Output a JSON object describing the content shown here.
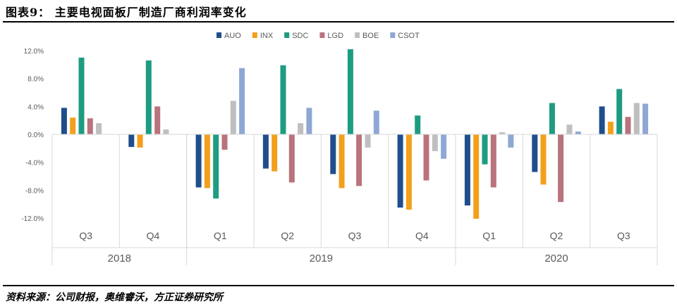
{
  "title": "图表9：  主要电视面板厂制造厂商利润率变化",
  "source": "资料来源：公司财报，奥维睿沃，方正证券研究所",
  "chart_data": {
    "type": "bar",
    "y_ticks": [
      "12.0%",
      "8.0%",
      "4.0%",
      "0.0%",
      "-4.0%",
      "-8.0%",
      "-12.0%"
    ],
    "ylim": [
      -12,
      12
    ],
    "legend_position": "top-center",
    "grid": false,
    "categories": [
      "Q3",
      "Q4",
      "Q1",
      "Q2",
      "Q3",
      "Q4",
      "Q1",
      "Q2",
      "Q3"
    ],
    "year_groups": [
      {
        "label": "2018",
        "span": 2
      },
      {
        "label": "2019",
        "span": 4
      },
      {
        "label": "2020",
        "span": 3
      }
    ],
    "series": [
      {
        "name": "AUO",
        "color": "#1F4E8C",
        "values": [
          3.8,
          -1.8,
          -7.6,
          -4.9,
          -5.7,
          -10.5,
          -10.2,
          -5.4,
          4.0
        ]
      },
      {
        "name": "INX",
        "color": "#F2A01C",
        "values": [
          2.4,
          -1.9,
          -7.7,
          -5.3,
          -7.7,
          -10.8,
          -12.1,
          -7.2,
          1.8
        ]
      },
      {
        "name": "SDC",
        "color": "#1E9C82",
        "values": [
          11.0,
          10.6,
          -9.2,
          9.9,
          12.2,
          2.7,
          -4.3,
          4.5,
          6.5
        ]
      },
      {
        "name": "LGD",
        "color": "#B9737C",
        "values": [
          2.3,
          4.0,
          -2.2,
          -6.9,
          -7.4,
          -6.6,
          -7.6,
          -9.7,
          2.5
        ]
      },
      {
        "name": "BOE",
        "color": "#BFBFBF",
        "values": [
          1.6,
          0.7,
          4.8,
          1.6,
          -1.9,
          -2.4,
          0.3,
          1.4,
          4.5
        ]
      },
      {
        "name": "CSOT",
        "color": "#8EA7D4",
        "values": [
          0.0,
          0.0,
          9.5,
          3.8,
          3.4,
          -3.5,
          -1.9,
          0.4,
          4.4
        ]
      }
    ]
  }
}
